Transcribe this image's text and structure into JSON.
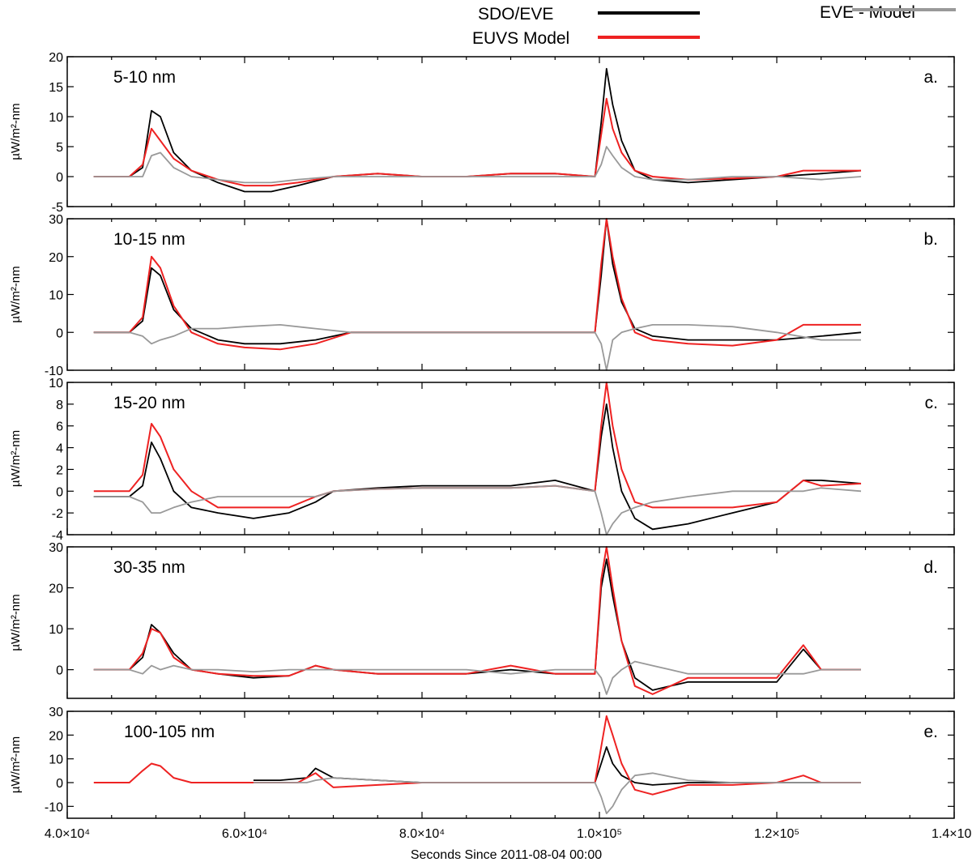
{
  "legend": {
    "placement": "top-right",
    "entries": [
      {
        "label": "SDO/EVE",
        "color": "#000000"
      },
      {
        "label": "EUVS Model",
        "color": "#ee2222"
      },
      {
        "label": "EVE - Model",
        "color": "#999999"
      }
    ]
  },
  "xlabel": "Seconds Since 2011-08-04 00:00",
  "ylabel": "µW/m²-nm",
  "colors": {
    "eve": "#000000",
    "model": "#ee2222",
    "diff": "#999999"
  },
  "xaxis": {
    "range": [
      40000,
      140000
    ],
    "ticks": [
      40000,
      60000,
      80000,
      100000,
      120000,
      140000
    ],
    "tick_labels": [
      "4.0×10⁴",
      "6.0×10⁴",
      "8.0×10⁴",
      "1.0×10⁵",
      "1.2×10⁵",
      "1.4×10⁵"
    ]
  },
  "chart_data": [
    {
      "type": "line",
      "title": "5-10 nm",
      "panel_label": "a.",
      "ylim": [
        -5,
        20
      ],
      "yticks": [
        -5,
        0,
        5,
        10,
        15,
        20
      ],
      "series": [
        {
          "name": "SDO/EVE",
          "color": "#000000",
          "x": [
            43000,
            47000,
            48500,
            49500,
            50500,
            52000,
            54000,
            57000,
            60000,
            63000,
            66000,
            70000,
            75000,
            80000,
            85000,
            90000,
            95000,
            99500,
            100200,
            100800,
            101500,
            102500,
            104000,
            106000,
            110000,
            115000,
            120000,
            125000,
            129500
          ],
          "y": [
            0,
            0,
            1.5,
            11,
            10,
            4,
            1,
            -1,
            -2.5,
            -2.5,
            -1.5,
            0,
            0.5,
            0,
            0,
            0.5,
            0.5,
            0,
            9,
            18,
            12,
            6,
            1,
            -0.5,
            -1,
            -0.5,
            0,
            0.5,
            1
          ]
        },
        {
          "name": "EUVS Model",
          "color": "#ee2222",
          "x": [
            43000,
            47000,
            48500,
            49500,
            50500,
            52000,
            54000,
            57000,
            60000,
            63000,
            66000,
            70000,
            75000,
            80000,
            85000,
            90000,
            95000,
            99500,
            100200,
            100800,
            101500,
            102500,
            104000,
            106000,
            110000,
            115000,
            120000,
            123000,
            125000,
            129500
          ],
          "y": [
            0,
            0,
            2,
            8,
            6,
            3,
            1,
            -0.5,
            -1.5,
            -1.5,
            -1,
            0,
            0.5,
            0,
            0,
            0.5,
            0.5,
            0,
            7,
            13,
            8,
            4,
            1,
            0,
            -0.5,
            -0.3,
            0,
            1,
            1,
            1
          ]
        },
        {
          "name": "EVE - Model",
          "color": "#999999",
          "x": [
            43000,
            47000,
            48500,
            49500,
            50500,
            52000,
            54000,
            57000,
            60000,
            63000,
            66000,
            70000,
            75000,
            80000,
            85000,
            90000,
            95000,
            99500,
            100200,
            100800,
            101500,
            102500,
            104000,
            106000,
            110000,
            115000,
            120000,
            125000,
            129500
          ],
          "y": [
            0,
            0,
            0,
            3.5,
            4,
            1.5,
            0,
            -0.5,
            -1,
            -1,
            -0.5,
            0,
            0,
            0,
            0,
            0,
            0,
            0,
            2,
            5,
            3.5,
            1.5,
            0,
            -0.5,
            -0.5,
            0,
            0,
            -0.5,
            0
          ]
        }
      ]
    },
    {
      "type": "line",
      "title": "10-15 nm",
      "panel_label": "b.",
      "ylim": [
        -10,
        30
      ],
      "yticks": [
        -10,
        0,
        10,
        20,
        30
      ],
      "series": [
        {
          "name": "SDO/EVE",
          "color": "#000000",
          "x": [
            43000,
            47000,
            48500,
            49500,
            50500,
            52000,
            54000,
            57000,
            60000,
            64000,
            68000,
            72000,
            80000,
            90000,
            99500,
            100200,
            100800,
            101500,
            102500,
            104000,
            106000,
            110000,
            115000,
            120000,
            125000,
            129500
          ],
          "y": [
            0,
            0,
            3,
            17,
            15,
            6,
            1,
            -2,
            -3,
            -3,
            -2,
            0,
            0,
            0,
            0,
            15,
            30,
            18,
            8,
            1,
            -1,
            -2,
            -2,
            -2,
            -1,
            0
          ]
        },
        {
          "name": "EUVS Model",
          "color": "#ee2222",
          "x": [
            43000,
            47000,
            48500,
            49500,
            50500,
            52000,
            54000,
            57000,
            60000,
            64000,
            68000,
            72000,
            80000,
            90000,
            99500,
            100200,
            100800,
            101500,
            102500,
            104000,
            106000,
            110000,
            115000,
            120000,
            123000,
            125000,
            129500
          ],
          "y": [
            0,
            0,
            4,
            20,
            17,
            7,
            0,
            -3,
            -4,
            -4.5,
            -3,
            0,
            0,
            0,
            0,
            18,
            30,
            20,
            9,
            0,
            -2,
            -3,
            -3.5,
            -2,
            2,
            2,
            2
          ]
        },
        {
          "name": "EVE - Model",
          "color": "#999999",
          "x": [
            43000,
            47000,
            48500,
            49500,
            50500,
            52000,
            54000,
            57000,
            60000,
            64000,
            68000,
            72000,
            80000,
            90000,
            99500,
            100200,
            100800,
            101500,
            102500,
            104000,
            106000,
            110000,
            115000,
            120000,
            125000,
            129500
          ],
          "y": [
            0,
            0,
            -1,
            -3,
            -2,
            -1,
            1,
            1,
            1.5,
            2,
            1,
            0,
            0,
            0,
            0,
            -3,
            -10,
            -2,
            0,
            1,
            2,
            2,
            1.5,
            0,
            -2,
            -2
          ]
        }
      ]
    },
    {
      "type": "line",
      "title": "15-20 nm",
      "panel_label": "c.",
      "ylim": [
        -4,
        10
      ],
      "yticks": [
        -4,
        -2,
        0,
        2,
        4,
        6,
        8,
        10
      ],
      "series": [
        {
          "name": "SDO/EVE",
          "color": "#000000",
          "x": [
            43000,
            47000,
            48500,
            49500,
            50500,
            52000,
            54000,
            57000,
            61000,
            65000,
            68000,
            70000,
            75000,
            80000,
            85000,
            90000,
            95000,
            99500,
            100200,
            100800,
            101500,
            102500,
            104000,
            106000,
            110000,
            115000,
            120000,
            123000,
            125000,
            129500
          ],
          "y": [
            -0.5,
            -0.5,
            0.5,
            4.5,
            3,
            0,
            -1.5,
            -2,
            -2.5,
            -2,
            -1,
            0,
            0.3,
            0.5,
            0.5,
            0.5,
            1,
            0,
            5,
            8,
            4,
            0,
            -2.5,
            -3.5,
            -3,
            -2,
            -1,
            1,
            1,
            0.7
          ]
        },
        {
          "name": "EUVS Model",
          "color": "#ee2222",
          "x": [
            43000,
            47000,
            48500,
            49500,
            50500,
            52000,
            54000,
            57000,
            61000,
            65000,
            68000,
            70000,
            75000,
            80000,
            85000,
            90000,
            95000,
            99500,
            100200,
            100800,
            101500,
            102500,
            104000,
            106000,
            110000,
            115000,
            120000,
            123000,
            125000,
            129500
          ],
          "y": [
            0,
            0,
            1.5,
            6.2,
            5,
            2,
            0,
            -1.5,
            -1.5,
            -1.5,
            -0.5,
            0,
            0.2,
            0.3,
            0.3,
            0.3,
            0.5,
            0,
            6,
            10,
            6,
            2,
            -1,
            -1.5,
            -1.5,
            -1.5,
            -1,
            1,
            0.5,
            0.7
          ]
        },
        {
          "name": "EVE - Model",
          "color": "#999999",
          "x": [
            43000,
            47000,
            48500,
            49500,
            50500,
            52000,
            54000,
            57000,
            61000,
            65000,
            68000,
            70000,
            75000,
            80000,
            85000,
            90000,
            95000,
            99500,
            100200,
            100800,
            101500,
            102500,
            104000,
            106000,
            110000,
            115000,
            120000,
            123000,
            125000,
            129500
          ],
          "y": [
            -0.5,
            -0.5,
            -1,
            -2,
            -2,
            -1.5,
            -1,
            -0.5,
            -0.5,
            -0.5,
            -0.5,
            0,
            0.2,
            0.3,
            0.3,
            0.3,
            0.5,
            0,
            -2,
            -4,
            -3,
            -2,
            -1.5,
            -1,
            -0.5,
            0,
            0,
            0,
            0.3,
            0
          ]
        }
      ]
    },
    {
      "type": "line",
      "title": "30-35 nm",
      "panel_label": "d.",
      "ylim": [
        -7,
        30
      ],
      "yticks": [
        0,
        10,
        20,
        30
      ],
      "series": [
        {
          "name": "SDO/EVE",
          "color": "#000000",
          "x": [
            43000,
            47000,
            48500,
            49500,
            50500,
            52000,
            54000,
            57000,
            61000,
            65000,
            68000,
            70000,
            75000,
            80000,
            85000,
            90000,
            95000,
            99500,
            100200,
            100800,
            101500,
            102500,
            104000,
            106000,
            108000,
            110000,
            115000,
            120000,
            123000,
            125000,
            129500
          ],
          "y": [
            0,
            0,
            3,
            11,
            9,
            4,
            0,
            -1,
            -2,
            -1.5,
            1,
            0,
            -1,
            -1,
            -1,
            0,
            -1,
            -1,
            20,
            27,
            18,
            7,
            -2,
            -5,
            -4,
            -3,
            -3,
            -3,
            5,
            0,
            0
          ]
        },
        {
          "name": "EUVS Model",
          "color": "#ee2222",
          "x": [
            43000,
            47000,
            48500,
            49500,
            50500,
            52000,
            54000,
            57000,
            61000,
            65000,
            68000,
            70000,
            75000,
            80000,
            85000,
            90000,
            95000,
            99500,
            100200,
            100800,
            101500,
            102500,
            104000,
            106000,
            108000,
            110000,
            115000,
            120000,
            123000,
            125000,
            129500
          ],
          "y": [
            0,
            0,
            4,
            10,
            9,
            3,
            0,
            -1,
            -1.5,
            -1.5,
            1,
            0,
            -1,
            -1,
            -1,
            1,
            -1,
            -1,
            22,
            30,
            20,
            7,
            -4,
            -6,
            -4,
            -2,
            -2,
            -2,
            6,
            0,
            0
          ]
        },
        {
          "name": "EVE - Model",
          "color": "#999999",
          "x": [
            43000,
            47000,
            48500,
            49500,
            50500,
            52000,
            54000,
            57000,
            61000,
            65000,
            68000,
            70000,
            75000,
            80000,
            85000,
            90000,
            95000,
            99500,
            100200,
            100800,
            101500,
            102500,
            104000,
            106000,
            108000,
            110000,
            115000,
            120000,
            123000,
            125000,
            129500
          ],
          "y": [
            0,
            0,
            -1,
            1,
            0,
            1,
            0,
            0,
            -0.5,
            0,
            0,
            0,
            0,
            0,
            0,
            -1,
            0,
            0,
            -2,
            -6,
            -2,
            0,
            2,
            1,
            0,
            -1,
            -1,
            -1,
            -1,
            0,
            0
          ]
        }
      ]
    },
    {
      "type": "line",
      "title": "100-105 nm",
      "panel_label": "e.",
      "ylim": [
        -15,
        30
      ],
      "yticks": [
        -10,
        0,
        10,
        20,
        30
      ],
      "series": [
        {
          "name": "SDO/EVE",
          "color": "#000000",
          "x": [
            61000,
            64000,
            67000,
            68000,
            70000,
            75000,
            80000,
            85000,
            90000,
            95000,
            99500,
            100200,
            100800,
            101500,
            102500,
            104000,
            106000,
            110000,
            115000,
            120000,
            125000,
            129500
          ],
          "y": [
            1,
            1,
            2,
            6,
            2,
            1,
            0,
            0,
            0,
            0,
            0,
            8,
            15,
            8,
            3,
            0,
            -1,
            0,
            0,
            0,
            0,
            0
          ]
        },
        {
          "name": "EUVS Model",
          "color": "#ee2222",
          "x": [
            43000,
            47000,
            48500,
            49500,
            50500,
            52000,
            54000,
            57000,
            60000,
            63000,
            66000,
            68000,
            70000,
            75000,
            80000,
            85000,
            90000,
            95000,
            99500,
            100200,
            100800,
            101500,
            102500,
            104000,
            106000,
            110000,
            115000,
            120000,
            123000,
            125000,
            129500
          ],
          "y": [
            0,
            0,
            5,
            8,
            7,
            2,
            0,
            0,
            0,
            0,
            0,
            4,
            -2,
            -1,
            0,
            0,
            0,
            0,
            0,
            15,
            28,
            20,
            8,
            -3,
            -5,
            -1,
            -1,
            0,
            3,
            0,
            0
          ]
        },
        {
          "name": "EVE - Model",
          "color": "#999999",
          "x": [
            61000,
            64000,
            67000,
            68000,
            70000,
            75000,
            80000,
            85000,
            90000,
            95000,
            99500,
            100200,
            100800,
            101500,
            102500,
            104000,
            106000,
            110000,
            115000,
            120000,
            125000,
            129500
          ],
          "y": [
            0,
            0,
            0,
            1,
            2,
            1,
            0,
            0,
            0,
            0,
            0,
            -6,
            -13,
            -10,
            -3,
            3,
            4,
            1,
            0,
            0,
            0,
            0
          ]
        }
      ]
    }
  ]
}
